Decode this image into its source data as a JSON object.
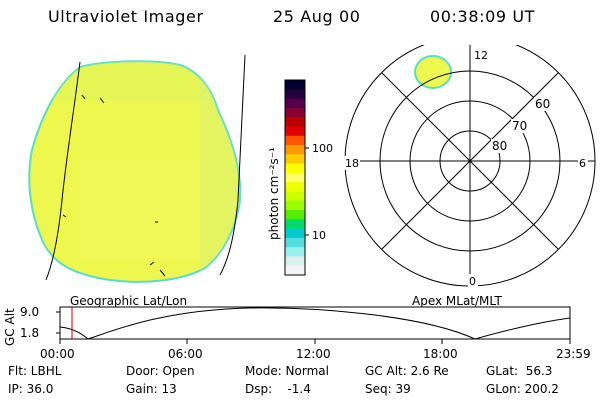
{
  "header": {
    "instrument": "Ultraviolet Imager",
    "date": "25 Aug 00",
    "time": "00:38:09 UT"
  },
  "colorbar": {
    "unit_label": "photon cm⁻²s⁻¹",
    "ticks": [
      {
        "label": "100",
        "value": 100
      },
      {
        "label": "10",
        "value": 10
      }
    ],
    "colors": [
      "#000033",
      "#22003a",
      "#55004d",
      "#880033",
      "#bb0000",
      "#e30000",
      "#ff5500",
      "#ff9900",
      "#ffcc00",
      "#ffff00",
      "#ffff66",
      "#eeff00",
      "#ccff00",
      "#99ff00",
      "#55ee00",
      "#00dd66",
      "#00cccc",
      "#55dddd",
      "#99eeee",
      "#ddeeee",
      "#f4f4f4"
    ]
  },
  "geo_panel": {
    "label": "Geographic Lat/Lon",
    "fill_color": "#eef74e"
  },
  "polar_panel": {
    "label": "Apex MLat/MLT",
    "mlt_labels": {
      "top": "12",
      "bottom": "0",
      "left": "18",
      "right": "6"
    },
    "lat_labels": [
      "60",
      "70",
      "80"
    ]
  },
  "altitude_plot": {
    "ylabel": "GC Alt",
    "yticks": [
      "9.0",
      "1.8"
    ],
    "xticks": [
      "00:00",
      "06:00",
      "12:00",
      "18:00",
      "23:59"
    ],
    "marker_color": "#cc0000"
  },
  "status": {
    "flt": "Flt: LBHL",
    "ip": "IP: 36.0",
    "door": "Door: Open",
    "gain": "Gain: 13",
    "mode": "Mode: Normal",
    "dsp": "Dsp:    -1.4",
    "gc_alt": "GC Alt: 2.6 Re",
    "seq": "Seq: 39",
    "glat": "GLat:  56.3",
    "glon": "GLon: 200.2"
  }
}
